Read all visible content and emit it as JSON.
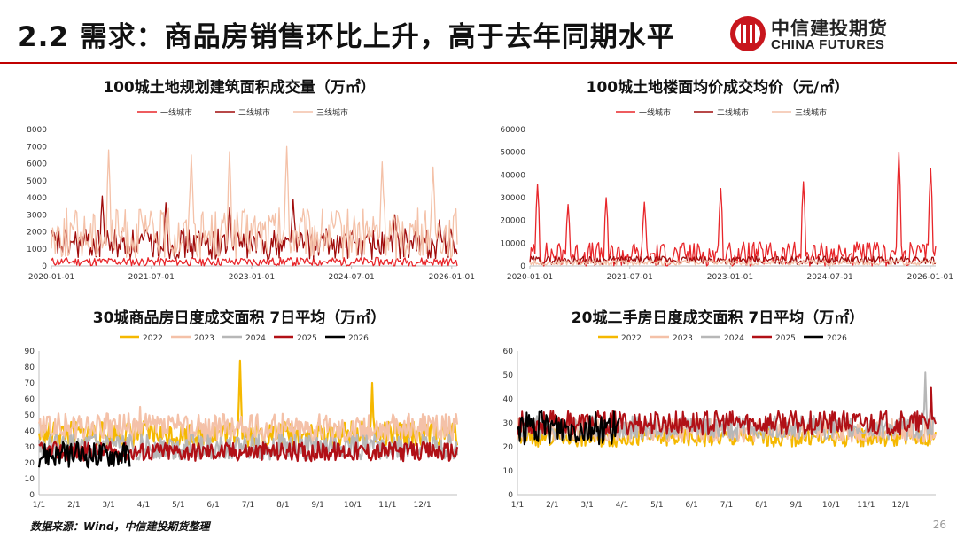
{
  "header": {
    "title": "2.2 需求：商品房销售环比上升，高于去年同期水平"
  },
  "logo": {
    "cn": "中信建投期货",
    "en": "CHINA FUTURES",
    "brand_color": "#c8161d"
  },
  "footer": {
    "source": "数据来源：Wind，中信建投期货整理",
    "page": "26"
  },
  "chart_data": [
    {
      "id": "c1",
      "type": "line",
      "title": "100城土地规划建筑面积成交量（万㎡）",
      "xaxis": "date",
      "x_ticks": [
        "2020-01-01",
        "2021-07-01",
        "2023-01-01",
        "2024-07-01",
        "2026-01-01"
      ],
      "x_start": "2020-01-01",
      "x_end": "2026-01-31",
      "ylim": [
        0,
        8000
      ],
      "y_ticks": [
        0,
        1000,
        2000,
        3000,
        4000,
        5000,
        6000,
        7000,
        8000
      ],
      "series": [
        {
          "name": "一线城市",
          "color": "#e8262a",
          "width": 1.3
        },
        {
          "name": "二线城市",
          "color": "#a00c0c",
          "width": 1.3
        },
        {
          "name": "三线城市",
          "color": "#f4c1a8",
          "width": 1.3
        }
      ]
    },
    {
      "id": "c2",
      "type": "line",
      "title": "100城土地楼面均价成交均价（元/㎡）",
      "xaxis": "date",
      "x_ticks": [
        "2020-01-01",
        "2021-07-01",
        "2023-01-01",
        "2024-07-01",
        "2026-01-01"
      ],
      "x_start": "2020-01-01",
      "x_end": "2026-01-31",
      "ylim": [
        0,
        60000
      ],
      "y_ticks": [
        0,
        10000,
        20000,
        30000,
        40000,
        50000,
        60000
      ],
      "series": [
        {
          "name": "一线城市",
          "color": "#e8262a",
          "width": 1.3
        },
        {
          "name": "二线城市",
          "color": "#a00c0c",
          "width": 1.3
        },
        {
          "name": "三线城市",
          "color": "#f4c1a8",
          "width": 1.3
        }
      ]
    },
    {
      "id": "c3",
      "type": "line",
      "title": "30城商品房日度成交面积 7日平均（万㎡）",
      "x_ticks": [
        "1/1",
        "2/1",
        "3/1",
        "4/1",
        "5/1",
        "6/1",
        "7/1",
        "8/1",
        "9/1",
        "10/1",
        "11/1",
        "12/1"
      ],
      "ylim": [
        0,
        90
      ],
      "y_ticks": [
        0,
        10,
        20,
        30,
        40,
        50,
        60,
        70,
        80,
        90
      ],
      "series": [
        {
          "name": "2022",
          "color": "#f5b800",
          "width": 2.2
        },
        {
          "name": "2023",
          "color": "#f4c1a8",
          "width": 2.2
        },
        {
          "name": "2024",
          "color": "#b7b7b7",
          "width": 2.2
        },
        {
          "name": "2025",
          "color": "#b11016",
          "width": 2.2
        },
        {
          "name": "2026",
          "color": "#000000",
          "width": 2.2
        }
      ]
    },
    {
      "id": "c4",
      "type": "line",
      "title": "20城二手房日度成交面积 7日平均（万㎡）",
      "x_ticks": [
        "1/1",
        "2/1",
        "3/1",
        "4/1",
        "5/1",
        "6/1",
        "7/1",
        "8/1",
        "9/1",
        "10/1",
        "11/1",
        "12/1"
      ],
      "ylim": [
        0,
        60
      ],
      "y_ticks": [
        0,
        10,
        20,
        30,
        40,
        50,
        60
      ],
      "series": [
        {
          "name": "2022",
          "color": "#f5b800",
          "width": 2
        },
        {
          "name": "2023",
          "color": "#f4c1a8",
          "width": 2
        },
        {
          "name": "2024",
          "color": "#b7b7b7",
          "width": 2
        },
        {
          "name": "2025",
          "color": "#b11016",
          "width": 2
        },
        {
          "name": "2026",
          "color": "#000000",
          "width": 2
        }
      ]
    }
  ]
}
